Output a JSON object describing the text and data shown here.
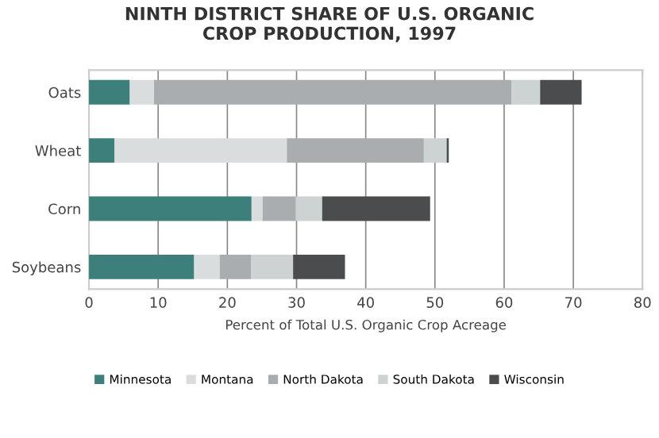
{
  "chart_data": {
    "type": "bar",
    "orientation": "horizontal",
    "stacked": true,
    "title": "NINTH DISTRICT SHARE OF U.S. ORGANIC\nCROP PRODUCTION, 1997",
    "xlabel": "Percent of Total U.S. Organic Crop Acreage",
    "categories": [
      "Oats",
      "Wheat",
      "Corn",
      "Soybeans"
    ],
    "series": [
      {
        "name": "Minnesota",
        "color": "#3d7f7a",
        "values": [
          5.9,
          3.7,
          23.5,
          15.2
        ]
      },
      {
        "name": "Montana",
        "color": "#d9dddd",
        "values": [
          3.5,
          24.9,
          1.6,
          3.7
        ]
      },
      {
        "name": "North Dakota",
        "color": "#a9adb0",
        "values": [
          51.7,
          19.8,
          4.8,
          4.5
        ]
      },
      {
        "name": "South Dakota",
        "color": "#cdd3d3",
        "values": [
          4.1,
          3.3,
          3.8,
          6.1
        ]
      },
      {
        "name": "Wisconsin",
        "color": "#4a4c4e",
        "values": [
          6.0,
          0.3,
          15.6,
          7.5
        ]
      }
    ],
    "xlim": [
      0,
      80
    ],
    "xticks": [
      0,
      10,
      20,
      30,
      40,
      50,
      60,
      70,
      80
    ],
    "grid": "x",
    "legend": "bottom"
  }
}
